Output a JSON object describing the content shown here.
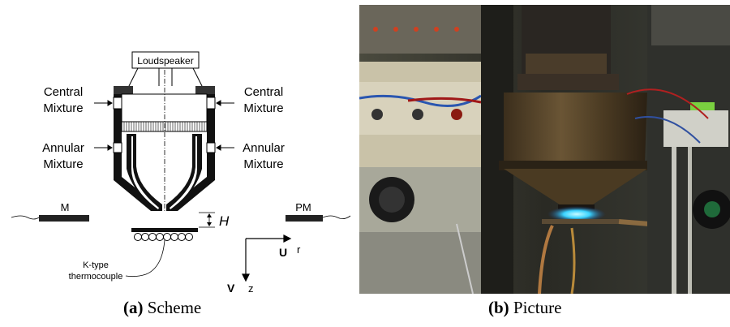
{
  "scheme": {
    "loudspeaker": "Loudspeaker",
    "central_left": [
      "Central",
      "Mixture"
    ],
    "central_right": [
      "Central",
      "Mixture"
    ],
    "annular_left": [
      "Annular",
      "Mixture"
    ],
    "annular_right": [
      "Annular",
      "Mixture"
    ],
    "m_label": "M",
    "pm_label": "PM",
    "h_label": "H",
    "thermocouple": [
      "K-type",
      "thermocouple"
    ],
    "axis_r_vector": "U",
    "axis_r": "r",
    "axis_z_vector": "V",
    "axis_z": "z"
  },
  "captions": {
    "a_tag": "(a)",
    "a_text": " Scheme",
    "b_tag": "(b)",
    "b_text": " Picture"
  }
}
